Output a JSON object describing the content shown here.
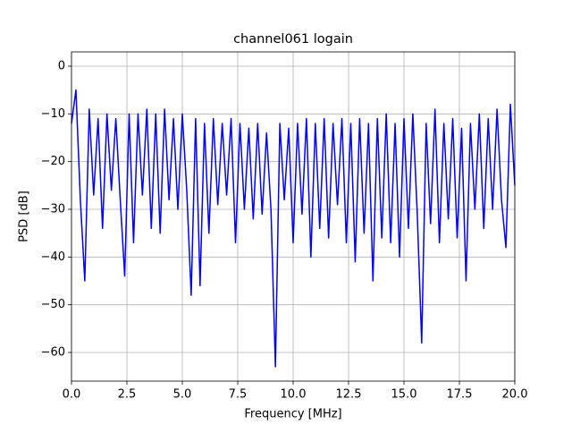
{
  "chart_data": {
    "type": "line",
    "title": "channel061 logain",
    "x_label": "Frequency [MHz]",
    "y_label": "PSD [dB]",
    "x": [
      0,
      0.2,
      0.4,
      0.6,
      0.8,
      1,
      1.2,
      1.4,
      1.6,
      1.8,
      2,
      2.2,
      2.4,
      2.6,
      2.8,
      3,
      3.2,
      3.4,
      3.6,
      3.8,
      4,
      4.2,
      4.4,
      4.6,
      4.8,
      5,
      5.2,
      5.4,
      5.6,
      5.8,
      6,
      6.2,
      6.4,
      6.6,
      6.8,
      7,
      7.2,
      7.4,
      7.6,
      7.8,
      8,
      8.2,
      8.4,
      8.6,
      8.8,
      9,
      9.2,
      9.4,
      9.6,
      9.8,
      10,
      10.2,
      10.4,
      10.6,
      10.8,
      11,
      11.2,
      11.4,
      11.6,
      11.8,
      12,
      12.2,
      12.4,
      12.6,
      12.8,
      13,
      13.2,
      13.4,
      13.6,
      13.8,
      14,
      14.2,
      14.4,
      14.6,
      14.8,
      15,
      15.2,
      15.4,
      15.6,
      15.8,
      16,
      16.2,
      16.4,
      16.6,
      16.8,
      17,
      17.2,
      17.4,
      17.6,
      17.8,
      18,
      18.2,
      18.4,
      18.6,
      18.8,
      19,
      19.2,
      19.4,
      19.6,
      19.8,
      20
    ],
    "series": [
      {
        "name": "channel061",
        "color": "#0000ff",
        "values": [
          -12,
          -5,
          -28,
          -45,
          -9,
          -27,
          -11,
          -34,
          -10,
          -26,
          -11,
          -28,
          -44,
          -10,
          -37,
          -10,
          -27,
          -9,
          -34,
          -10,
          -35,
          -9,
          -28,
          -11,
          -30,
          -10,
          -26,
          -48,
          -11,
          -46,
          -12,
          -35,
          -11,
          -29,
          -12,
          -27,
          -11,
          -37,
          -12,
          -30,
          -13,
          -32,
          -12,
          -31,
          -14,
          -30,
          -63,
          -12,
          -28,
          -13,
          -37,
          -12,
          -31,
          -11,
          -40,
          -12,
          -34,
          -11,
          -36,
          -12,
          -29,
          -11,
          -37,
          -12,
          -41,
          -11,
          -35,
          -12,
          -45,
          -11,
          -36,
          -10,
          -37,
          -12,
          -40,
          -11,
          -34,
          -10,
          -31,
          -58,
          -12,
          -33,
          -9,
          -37,
          -12,
          -32,
          -11,
          -36,
          -13,
          -45,
          -12,
          -30,
          -10,
          -34,
          -11,
          -30,
          -9,
          -28,
          -38,
          -8,
          -25
        ]
      }
    ],
    "xlim": [
      0,
      20
    ],
    "xticks": [
      {
        "value": 0,
        "label": "0.0"
      },
      {
        "value": 2.5,
        "label": "2.5"
      },
      {
        "value": 5,
        "label": "5.0"
      },
      {
        "value": 7.5,
        "label": "7.5"
      },
      {
        "value": 10,
        "label": "10.0"
      },
      {
        "value": 12.5,
        "label": "12.5"
      },
      {
        "value": 15,
        "label": "15.0"
      },
      {
        "value": 17.5,
        "label": "17.5"
      },
      {
        "value": 20,
        "label": "20.0"
      }
    ],
    "ylim": [
      -66,
      3
    ],
    "yticks": [
      {
        "value": -60,
        "label": "−60"
      },
      {
        "value": -50,
        "label": "−50"
      },
      {
        "value": -40,
        "label": "−40"
      },
      {
        "value": -30,
        "label": "−30"
      },
      {
        "value": -20,
        "label": "−20"
      },
      {
        "value": -10,
        "label": "−10"
      },
      0
    ],
    "grid": true
  }
}
